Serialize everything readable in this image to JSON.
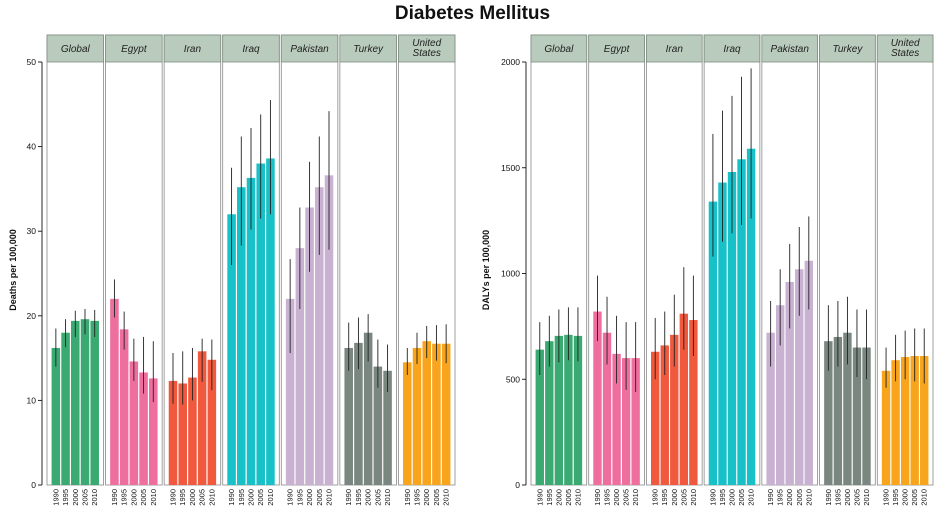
{
  "title": "Diabetes Mellitus",
  "years": [
    "1990",
    "1995",
    "2000",
    "2005",
    "2010"
  ],
  "colors": {
    "Global": "#3aaa72",
    "Egypt": "#ee6f9d",
    "Iran": "#f0593d",
    "Iraq": "#18c1c8",
    "Pakistan": "#c9b1d2",
    "Turkey": "#7a8781",
    "United States": "#f8a51d",
    "strip_bg": "#b9cbbd",
    "error_bar": "#222222"
  },
  "chart_data": [
    {
      "type": "bar",
      "ylabel": "Deaths per 100,000",
      "ylim": [
        0,
        50
      ],
      "yticks": [
        "0",
        "10",
        "20",
        "30",
        "40",
        "50"
      ],
      "panels": [
        {
          "name": "Global",
          "label": "Global",
          "values": [
            16.2,
            18.0,
            19.4,
            19.6,
            19.4
          ],
          "lower": [
            14.0,
            16.3,
            17.5,
            17.8,
            17.5
          ],
          "upper": [
            18.5,
            19.6,
            20.6,
            20.8,
            20.7
          ]
        },
        {
          "name": "Egypt",
          "label": "Egypt",
          "values": [
            22.0,
            18.4,
            14.6,
            13.3,
            12.6
          ],
          "lower": [
            19.8,
            16.0,
            12.3,
            10.8,
            9.8
          ],
          "upper": [
            24.3,
            20.5,
            17.3,
            17.5,
            17.0
          ]
        },
        {
          "name": "Iran",
          "label": "Iran",
          "values": [
            12.3,
            12.0,
            12.7,
            15.8,
            14.8
          ],
          "lower": [
            9.6,
            9.5,
            10.0,
            12.2,
            11.2
          ],
          "upper": [
            15.6,
            15.8,
            16.2,
            17.3,
            17.2
          ]
        },
        {
          "name": "Iraq",
          "label": "Iraq",
          "values": [
            32.0,
            35.2,
            36.3,
            38.0,
            38.6
          ],
          "lower": [
            26.0,
            28.3,
            30.2,
            31.5,
            32.0
          ],
          "upper": [
            37.5,
            41.2,
            42.2,
            43.8,
            45.5
          ]
        },
        {
          "name": "Pakistan",
          "label": "Pakistan",
          "values": [
            22.0,
            28.0,
            32.8,
            35.2,
            36.6
          ],
          "lower": [
            15.6,
            20.8,
            25.2,
            27.2,
            27.8
          ],
          "upper": [
            26.7,
            32.8,
            38.2,
            41.2,
            44.2
          ]
        },
        {
          "name": "Turkey",
          "label": "Turkey",
          "values": [
            16.2,
            16.8,
            18.0,
            14.0,
            13.5
          ],
          "lower": [
            13.5,
            13.7,
            14.6,
            11.5,
            11.0
          ],
          "upper": [
            19.2,
            19.8,
            20.2,
            17.2,
            16.6
          ]
        },
        {
          "name": "United States",
          "label": "United States",
          "values": [
            14.5,
            16.2,
            17.0,
            16.7,
            16.7
          ],
          "lower": [
            13.0,
            14.3,
            15.0,
            14.7,
            14.4
          ],
          "upper": [
            16.2,
            18.0,
            18.8,
            18.9,
            19.0
          ]
        }
      ]
    },
    {
      "type": "bar",
      "ylabel": "DALYs per 100,000",
      "ylim": [
        0,
        2000
      ],
      "yticks": [
        "0",
        "500",
        "1000",
        "1500",
        "2000"
      ],
      "panels": [
        {
          "name": "Global",
          "label": "Global",
          "values": [
            640,
            680,
            705,
            710,
            705
          ],
          "lower": [
            520,
            560,
            580,
            590,
            585
          ],
          "upper": [
            770,
            800,
            830,
            840,
            840
          ]
        },
        {
          "name": "Egypt",
          "label": "Egypt",
          "values": [
            820,
            720,
            620,
            600,
            600
          ],
          "lower": [
            680,
            570,
            480,
            450,
            440
          ],
          "upper": [
            990,
            890,
            800,
            770,
            770
          ]
        },
        {
          "name": "Iran",
          "label": "Iran",
          "values": [
            630,
            660,
            710,
            810,
            780
          ],
          "lower": [
            500,
            520,
            560,
            640,
            610
          ],
          "upper": [
            790,
            820,
            900,
            1030,
            990
          ]
        },
        {
          "name": "Iraq",
          "label": "Iraq",
          "values": [
            1340,
            1430,
            1480,
            1540,
            1590
          ],
          "lower": [
            1080,
            1150,
            1190,
            1230,
            1260
          ],
          "upper": [
            1660,
            1770,
            1840,
            1930,
            1970
          ]
        },
        {
          "name": "Pakistan",
          "label": "Pakistan",
          "values": [
            720,
            850,
            960,
            1020,
            1060
          ],
          "lower": [
            560,
            660,
            740,
            800,
            830
          ],
          "upper": [
            870,
            1020,
            1140,
            1220,
            1270
          ]
        },
        {
          "name": "Turkey",
          "label": "Turkey",
          "values": [
            680,
            700,
            720,
            650,
            650
          ],
          "lower": [
            540,
            560,
            570,
            510,
            500
          ],
          "upper": [
            850,
            870,
            890,
            830,
            830
          ]
        },
        {
          "name": "United States",
          "label": "United States",
          "values": [
            540,
            590,
            605,
            610,
            610
          ],
          "lower": [
            460,
            490,
            500,
            490,
            480
          ],
          "upper": [
            650,
            710,
            730,
            740,
            740
          ]
        }
      ]
    }
  ]
}
